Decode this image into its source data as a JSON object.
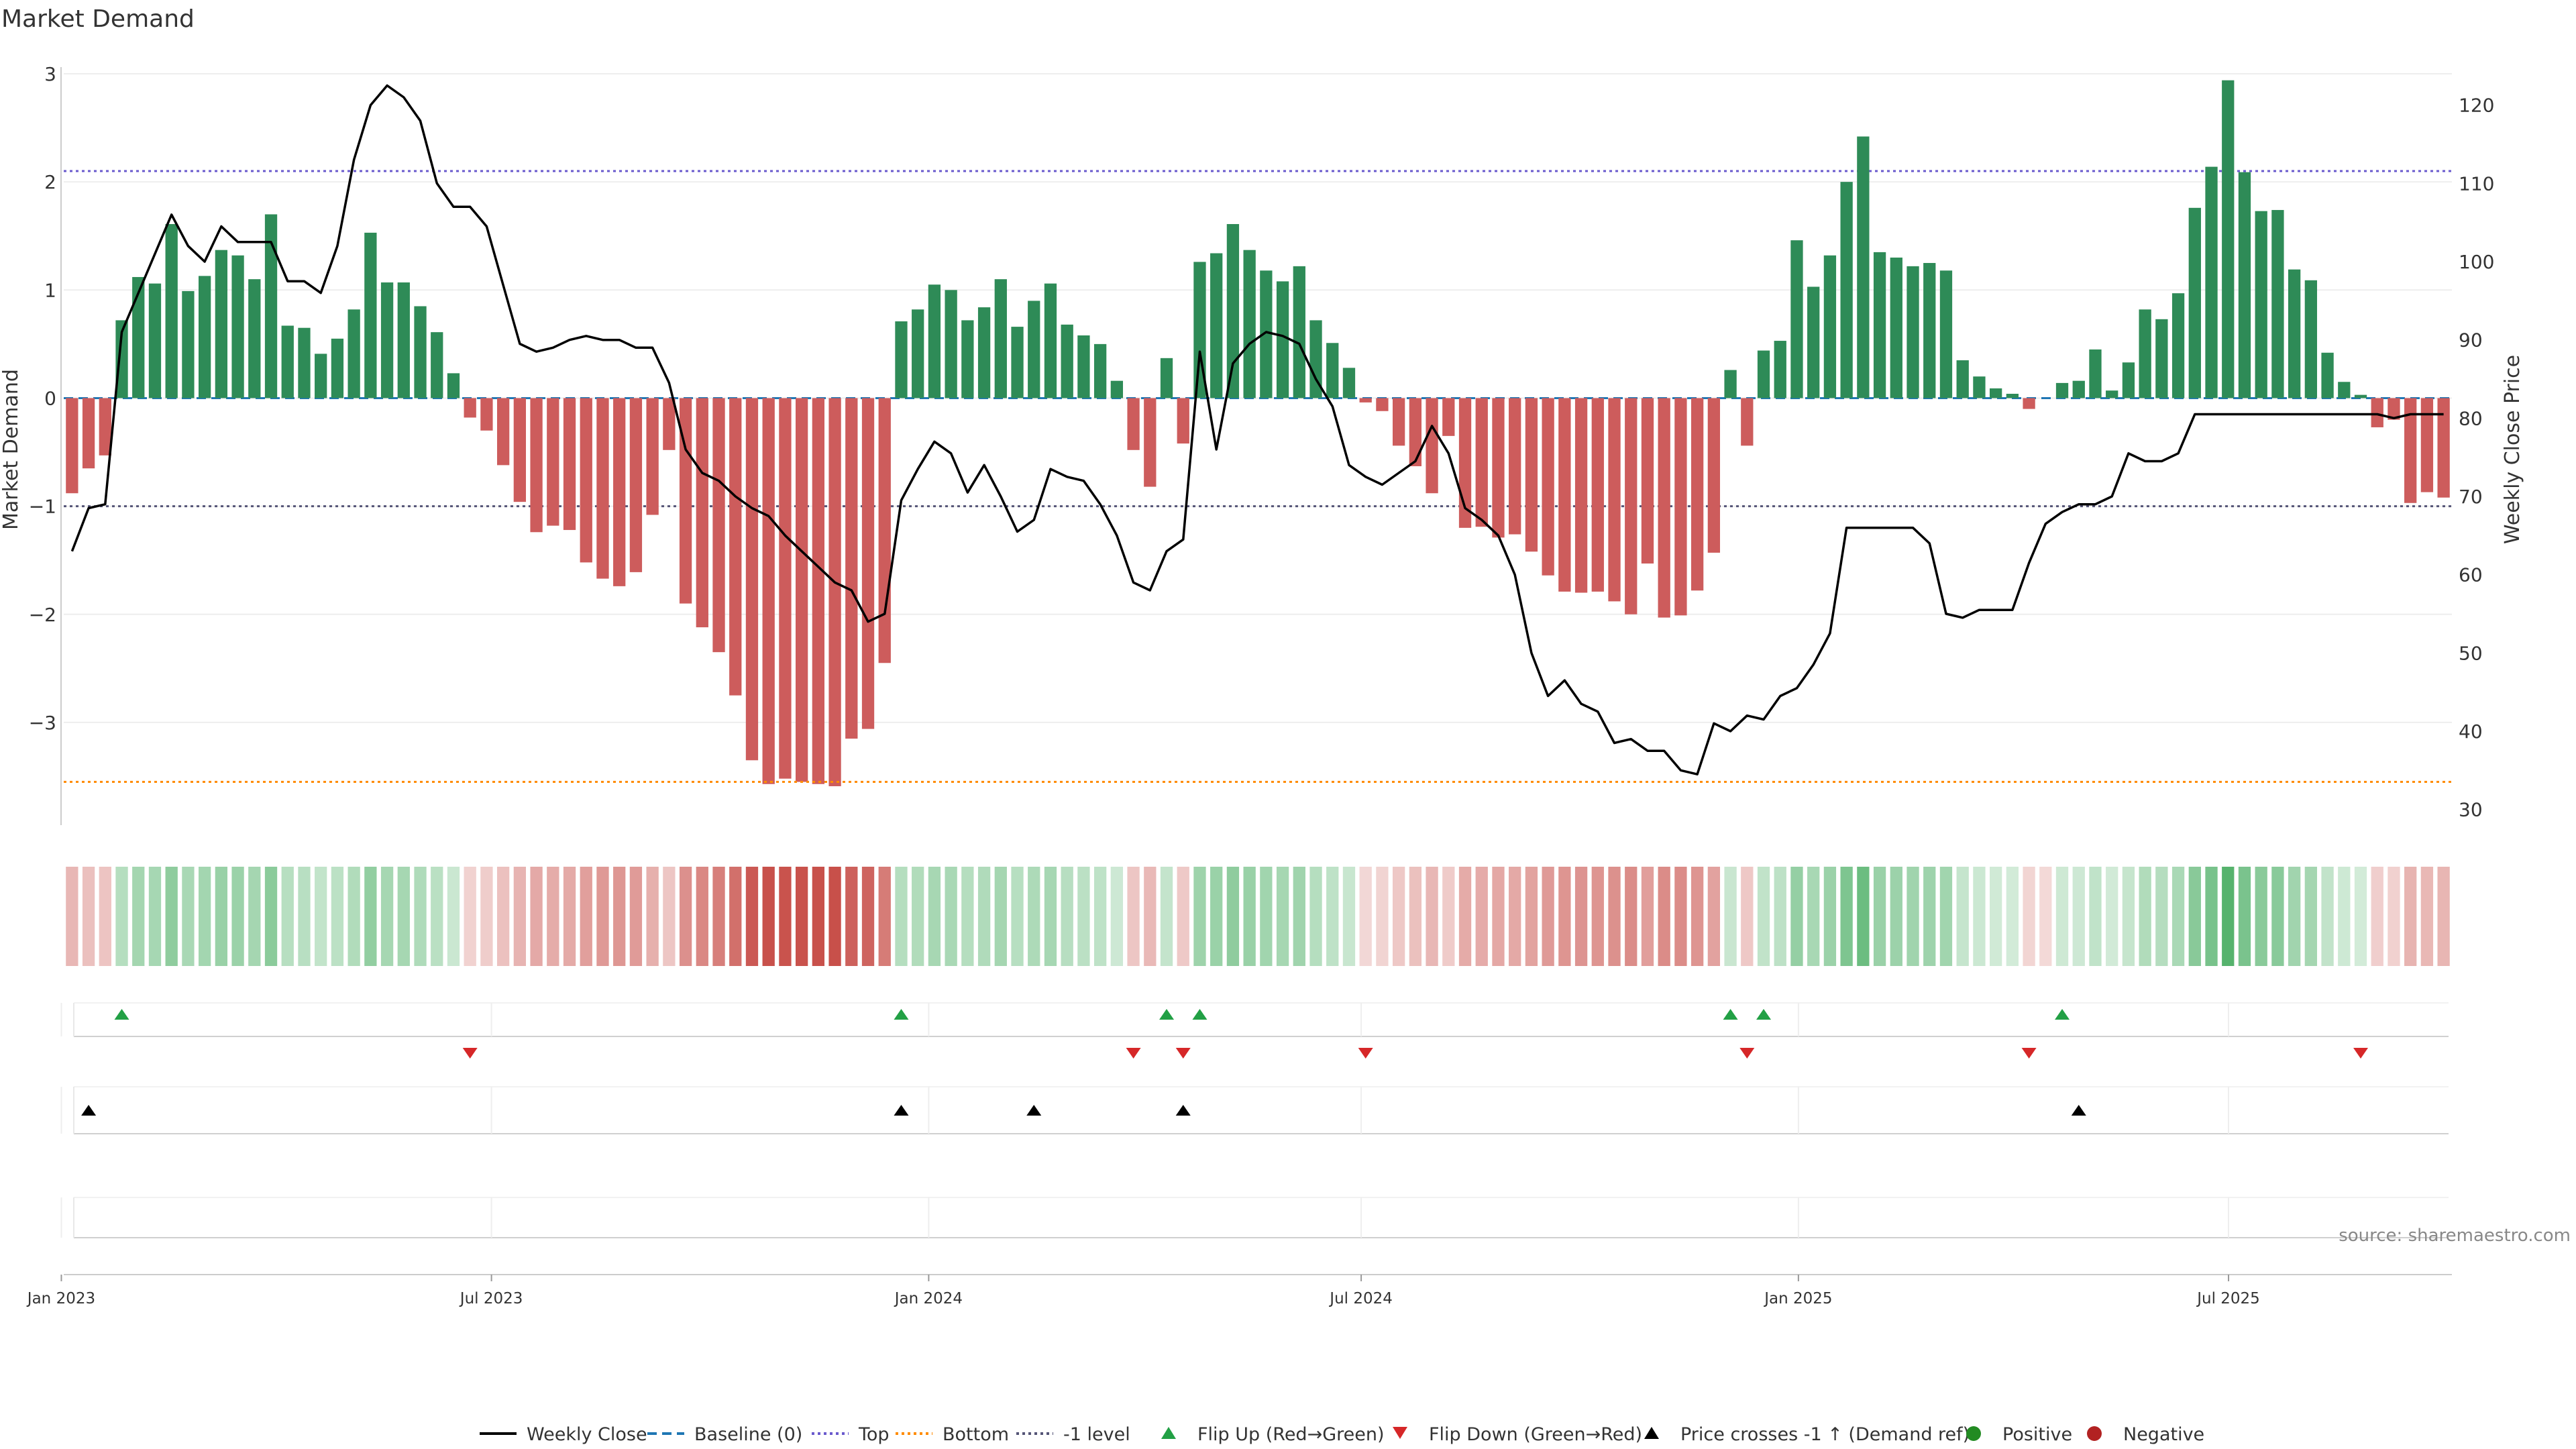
{
  "title": "Market Demand",
  "source": "source: sharemaestro.com",
  "colors": {
    "green": "#2e8b57",
    "red": "#cd5c5c",
    "price": "#000000",
    "baseline": "#1f77b4",
    "top": "#6a5acd",
    "bottom": "#ff8c00",
    "neg1": "#555577",
    "flip_up": "#22a045",
    "flip_down": "#d62728",
    "cross": "#000000",
    "positive": "#228b22",
    "negative": "#b22222",
    "axis": "#cccccc",
    "grid": "#eeeeee",
    "text": "#333333"
  },
  "chart_data": {
    "type": "bar",
    "title": "Market Demand",
    "ylabel": "Market Demand",
    "y2label": "Weekly Close Price",
    "ylim": [
      -3.95,
      3.0
    ],
    "y2lim": [
      28,
      124
    ],
    "yticks": [
      3,
      2,
      1,
      0,
      -1,
      -2,
      -3
    ],
    "ytick_labels": [
      "3",
      "2",
      "1",
      "0",
      "−1",
      "−2",
      "−3"
    ],
    "y2ticks": [
      120,
      110,
      100,
      90,
      80,
      70,
      60,
      50,
      40,
      30
    ],
    "y2tick_labels": [
      "120",
      "110",
      "100",
      "90",
      "80",
      "70",
      "60",
      "50",
      "40",
      "30"
    ],
    "x_start": "2023-01-02",
    "x_end": "2025-10-03",
    "xticks": [
      {
        "date": "2023-01-01",
        "label": "Jan 2023"
      },
      {
        "date": "2023-07-01",
        "label": "Jul 2023"
      },
      {
        "date": "2024-01-01",
        "label": "Jan 2024"
      },
      {
        "date": "2024-07-01",
        "label": "Jul 2024"
      },
      {
        "date": "2025-01-01",
        "label": "Jan 2025"
      },
      {
        "date": "2025-07-01",
        "label": "Jul 2025"
      }
    ],
    "levels": {
      "baseline": 0,
      "top": 2.1,
      "bottom": -3.55,
      "neg1": -1
    },
    "demand": [
      -0.88,
      -0.65,
      -0.53,
      0.72,
      1.12,
      1.06,
      1.61,
      0.99,
      1.13,
      1.37,
      1.32,
      1.1,
      1.7,
      0.67,
      0.65,
      0.41,
      0.55,
      0.82,
      1.53,
      1.07,
      1.07,
      0.85,
      0.61,
      0.23,
      -0.18,
      -0.3,
      -0.62,
      -0.96,
      -1.24,
      -1.18,
      -1.22,
      -1.52,
      -1.67,
      -1.74,
      -1.61,
      -1.08,
      -0.48,
      -1.9,
      -2.12,
      -2.35,
      -2.75,
      -3.35,
      -3.57,
      -3.52,
      -3.55,
      -3.57,
      -3.59,
      -3.15,
      -3.06,
      -2.45,
      0.71,
      0.82,
      1.05,
      1.0,
      0.72,
      0.84,
      1.1,
      0.66,
      0.9,
      1.06,
      0.68,
      0.58,
      0.5,
      0.16,
      -0.48,
      -0.82,
      0.37,
      -0.42,
      1.26,
      1.34,
      1.61,
      1.37,
      1.18,
      1.08,
      1.22,
      0.72,
      0.51,
      0.28,
      -0.04,
      -0.12,
      -0.44,
      -0.63,
      -0.88,
      -0.35,
      -1.2,
      -1.19,
      -1.29,
      -1.26,
      -1.42,
      -1.64,
      -1.79,
      -1.8,
      -1.79,
      -1.88,
      -2.0,
      -1.53,
      -2.03,
      -2.01,
      -1.78,
      -1.43,
      0.26,
      -0.44,
      0.44,
      0.53,
      1.46,
      1.03,
      1.32,
      2.0,
      2.42,
      1.35,
      1.3,
      1.22,
      1.25,
      1.18,
      0.35,
      0.2,
      0.09,
      0.04,
      -0.1,
      0.0,
      0.14,
      0.16,
      0.45,
      0.07,
      0.33,
      0.82,
      0.73,
      0.97,
      1.76,
      2.14,
      2.94,
      2.09,
      1.73,
      1.74,
      1.19,
      1.09,
      0.42,
      0.15,
      0.03,
      -0.27,
      -0.2,
      -0.97,
      -0.87,
      -0.92
    ],
    "price": [
      63.0,
      68.5,
      69.0,
      91.0,
      96.0,
      101.0,
      106.0,
      102.0,
      100.0,
      104.5,
      102.5,
      102.5,
      102.5,
      97.5,
      97.5,
      96.0,
      102.0,
      113.0,
      120.0,
      122.5,
      121.0,
      118.0,
      110.0,
      107.0,
      107.0,
      104.5,
      97.0,
      89.5,
      88.5,
      89.0,
      90.0,
      90.5,
      90.0,
      90.0,
      89.0,
      89.0,
      84.5,
      76.0,
      73.0,
      72.0,
      70.0,
      68.5,
      67.5,
      65.0,
      63.0,
      61.0,
      59.0,
      58.0,
      54.0,
      55.0,
      69.5,
      73.5,
      77.0,
      75.5,
      70.5,
      74.0,
      70.0,
      65.5,
      67.0,
      73.5,
      72.5,
      72.0,
      69.0,
      65.0,
      59.0,
      58.0,
      63.0,
      64.5,
      88.5,
      76.0,
      87.0,
      89.5,
      91.0,
      90.5,
      89.5,
      85.0,
      81.5,
      74.0,
      72.5,
      71.5,
      73.0,
      74.5,
      79.0,
      75.5,
      68.5,
      67.0,
      65.0,
      60.0,
      50.0,
      44.5,
      46.5,
      43.5,
      42.5,
      38.5,
      39.0,
      37.5,
      37.5,
      35.0,
      34.5,
      41.0,
      40.0,
      42.0,
      41.5,
      44.5,
      45.5,
      48.5,
      52.5,
      66.0,
      66.0,
      66.0,
      66.0,
      66.0,
      64.0,
      55.0,
      54.5,
      55.5,
      55.5,
      55.5,
      61.5,
      66.5,
      68.0,
      69.0,
      69.0,
      70.0,
      75.5,
      74.5,
      74.5,
      75.5,
      80.5,
      80.5,
      80.5,
      80.5,
      80.5,
      80.5,
      80.5,
      80.5,
      80.5,
      80.5,
      80.5,
      80.5,
      80.0,
      80.5,
      80.5,
      80.5
    ],
    "flip_up": [
      3,
      50,
      66,
      68,
      100,
      102,
      120
    ],
    "flip_down": [
      24,
      64,
      67,
      78,
      101,
      118,
      138
    ],
    "price_cross": [
      1,
      50,
      58,
      67,
      121
    ],
    "legend": [
      {
        "key": "price",
        "label": "Weekly Close",
        "symbol": "line"
      },
      {
        "key": "baseline",
        "label": "Baseline (0)",
        "symbol": "dash"
      },
      {
        "key": "top",
        "label": "Top",
        "symbol": "dot"
      },
      {
        "key": "bottom",
        "label": "Bottom",
        "symbol": "dot"
      },
      {
        "key": "neg1",
        "label": "-1 level",
        "symbol": "dot"
      },
      {
        "key": "flip_up",
        "label": "Flip Up (Red→Green)",
        "symbol": "tri-up"
      },
      {
        "key": "flip_down",
        "label": "Flip Down (Green→Red)",
        "symbol": "tri-down"
      },
      {
        "key": "cross",
        "label": "Price crosses -1 ↑ (Demand ref)",
        "symbol": "tri-up"
      },
      {
        "key": "positive",
        "label": "Positive",
        "symbol": "circle"
      },
      {
        "key": "negative",
        "label": "Negative",
        "symbol": "circle"
      }
    ]
  }
}
